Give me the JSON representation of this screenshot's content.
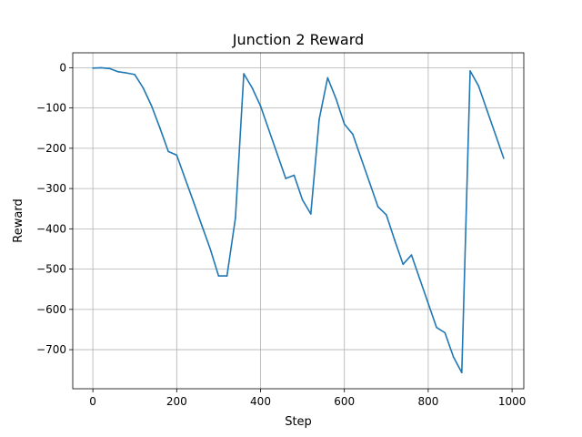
{
  "chart_data": {
    "type": "line",
    "title": "Junction 2 Reward",
    "xlabel": "Step",
    "ylabel": "Reward",
    "xlim": [
      -48,
      1028
    ],
    "ylim": [
      -797,
      37
    ],
    "xticks": [
      0,
      200,
      400,
      600,
      800,
      1000
    ],
    "yticks": [
      0,
      -100,
      -200,
      -300,
      -400,
      -500,
      -600,
      -700
    ],
    "grid": true,
    "series": [
      {
        "color": "#1f77b4",
        "x": [
          0,
          20,
          40,
          60,
          80,
          100,
          120,
          140,
          160,
          180,
          200,
          220,
          240,
          260,
          280,
          300,
          320,
          340,
          360,
          380,
          400,
          420,
          440,
          460,
          480,
          500,
          520,
          540,
          560,
          580,
          600,
          620,
          640,
          660,
          680,
          700,
          720,
          740,
          760,
          780,
          800,
          820,
          840,
          860,
          880,
          900,
          920,
          940,
          960,
          980
        ],
        "y": [
          -1,
          0,
          -2,
          -10,
          -13,
          -17,
          -50,
          -95,
          -150,
          -208,
          -217,
          -275,
          -333,
          -392,
          -450,
          -517,
          -517,
          -373,
          -15,
          -50,
          -95,
          -155,
          -215,
          -275,
          -267,
          -328,
          -363,
          -128,
          -25,
          -77,
          -140,
          -165,
          -225,
          -285,
          -345,
          -365,
          -428,
          -488,
          -465,
          -525,
          -585,
          -645,
          -658,
          -718,
          -757,
          -8,
          -45,
          -105,
          -165,
          -225
        ]
      }
    ]
  }
}
